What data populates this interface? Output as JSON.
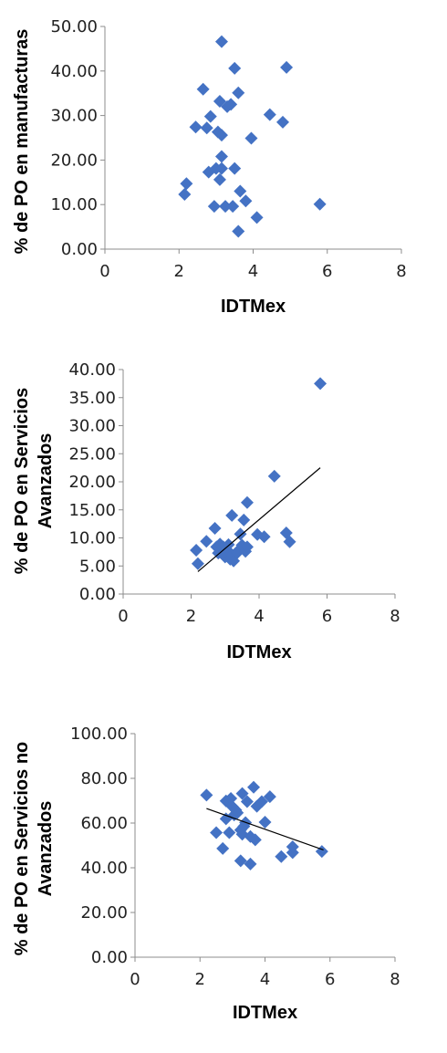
{
  "colors": {
    "marker": "#4472C4",
    "axis": "#8c8c8c",
    "trend": "#000000",
    "text": "#222222"
  },
  "chart_data": [
    {
      "type": "scatter",
      "xlabel": "IDTMex",
      "ylabel": "% de PO en manufacturas",
      "xlim": [
        0,
        8
      ],
      "ylim": [
        0,
        50
      ],
      "x_ticks": [
        "0",
        "2",
        "4",
        "6",
        "8"
      ],
      "y_ticks": [
        "0.00",
        "10.00",
        "20.00",
        "30.00",
        "40.00",
        "50.00"
      ],
      "grid": false,
      "legend": "none",
      "trendline": null,
      "points": [
        [
          2.15,
          12.3
        ],
        [
          2.2,
          14.7
        ],
        [
          2.45,
          27.4
        ],
        [
          2.65,
          35.9
        ],
        [
          2.75,
          27.2
        ],
        [
          2.8,
          17.3
        ],
        [
          2.85,
          29.8
        ],
        [
          2.95,
          9.6
        ],
        [
          3.0,
          18.1
        ],
        [
          3.05,
          26.3
        ],
        [
          3.1,
          15.6
        ],
        [
          3.1,
          33.2
        ],
        [
          3.15,
          25.6
        ],
        [
          3.15,
          20.8
        ],
        [
          3.15,
          18.1
        ],
        [
          3.15,
          46.6
        ],
        [
          3.25,
          9.6
        ],
        [
          3.3,
          32.0
        ],
        [
          3.4,
          32.5
        ],
        [
          3.45,
          9.6
        ],
        [
          3.5,
          40.6
        ],
        [
          3.5,
          18.1
        ],
        [
          3.6,
          35.1
        ],
        [
          3.6,
          4.0
        ],
        [
          3.65,
          13.0
        ],
        [
          3.8,
          10.8
        ],
        [
          3.95,
          24.9
        ],
        [
          4.1,
          7.1
        ],
        [
          4.45,
          30.2
        ],
        [
          4.8,
          28.5
        ],
        [
          4.9,
          40.8
        ],
        [
          5.8,
          10.1
        ]
      ]
    },
    {
      "type": "scatter",
      "xlabel": "IDTMex",
      "ylabel": "% de PO en Servicios Avanzados",
      "ylabel_lines": [
        "% de PO en Servicios",
        "Avanzados"
      ],
      "xlim": [
        0,
        8
      ],
      "ylim": [
        0,
        40
      ],
      "x_ticks": [
        "0",
        "2",
        "4",
        "6",
        "8"
      ],
      "y_ticks": [
        "0.00",
        "5.00",
        "10.00",
        "15.00",
        "20.00",
        "25.00",
        "30.00",
        "35.00",
        "40.00"
      ],
      "grid": false,
      "legend": "none",
      "trendline": {
        "type": "linear",
        "from": [
          2.2,
          4.0
        ],
        "to": [
          5.8,
          22.5
        ]
      },
      "points": [
        [
          2.15,
          7.8
        ],
        [
          2.2,
          5.4
        ],
        [
          2.45,
          9.4
        ],
        [
          2.7,
          11.7
        ],
        [
          2.75,
          8.4
        ],
        [
          2.8,
          7.3
        ],
        [
          2.85,
          8.9
        ],
        [
          2.95,
          8.4
        ],
        [
          3.0,
          6.6
        ],
        [
          3.05,
          7.9
        ],
        [
          3.1,
          8.8
        ],
        [
          3.15,
          6.2
        ],
        [
          3.2,
          7.0
        ],
        [
          3.2,
          14.0
        ],
        [
          3.25,
          5.9
        ],
        [
          3.35,
          7.3
        ],
        [
          3.35,
          7.5
        ],
        [
          3.45,
          10.7
        ],
        [
          3.5,
          8.7
        ],
        [
          3.55,
          13.2
        ],
        [
          3.6,
          7.6
        ],
        [
          3.65,
          16.3
        ],
        [
          3.65,
          8.4
        ],
        [
          3.95,
          10.6
        ],
        [
          4.15,
          10.2
        ],
        [
          4.45,
          21.0
        ],
        [
          4.8,
          10.9
        ],
        [
          4.9,
          9.3
        ],
        [
          5.8,
          37.5
        ]
      ]
    },
    {
      "type": "scatter",
      "xlabel": "IDTMex",
      "ylabel": "% de PO en Servicios no Avanzados",
      "ylabel_lines": [
        "% de PO en Servicios no",
        "Avanzados"
      ],
      "xlim": [
        0,
        8
      ],
      "ylim": [
        0,
        100
      ],
      "x_ticks": [
        "0",
        "2",
        "4",
        "6",
        "8"
      ],
      "y_ticks": [
        "0.00",
        "20.00",
        "40.00",
        "60.00",
        "80.00",
        "100.00"
      ],
      "grid": false,
      "legend": "none",
      "trendline": {
        "type": "linear",
        "from": [
          2.2,
          66.5
        ],
        "to": [
          5.8,
          48.0
        ]
      },
      "points": [
        [
          2.2,
          72.5
        ],
        [
          2.5,
          55.7
        ],
        [
          2.7,
          48.6
        ],
        [
          2.8,
          61.9
        ],
        [
          2.8,
          69.9
        ],
        [
          2.9,
          55.7
        ],
        [
          2.95,
          71.0
        ],
        [
          3.0,
          67.3
        ],
        [
          3.05,
          63.6
        ],
        [
          3.1,
          65.8
        ],
        [
          3.15,
          64.6
        ],
        [
          3.25,
          43.1
        ],
        [
          3.25,
          56.9
        ],
        [
          3.3,
          73.2
        ],
        [
          3.3,
          55.0
        ],
        [
          3.35,
          58.5
        ],
        [
          3.4,
          60.2
        ],
        [
          3.45,
          69.6
        ],
        [
          3.55,
          54.0
        ],
        [
          3.55,
          41.7
        ],
        [
          3.65,
          76.0
        ],
        [
          3.7,
          52.5
        ],
        [
          3.75,
          67.5
        ],
        [
          3.9,
          69.6
        ],
        [
          4.0,
          60.4
        ],
        [
          4.15,
          71.8
        ],
        [
          4.5,
          45.0
        ],
        [
          4.85,
          46.8
        ],
        [
          4.85,
          49.4
        ],
        [
          5.75,
          47.3
        ]
      ]
    }
  ]
}
